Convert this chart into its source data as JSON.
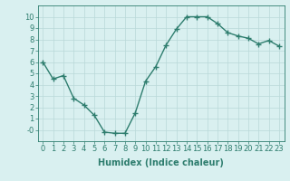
{
  "x": [
    0,
    1,
    2,
    3,
    4,
    5,
    6,
    7,
    8,
    9,
    10,
    11,
    12,
    13,
    14,
    15,
    16,
    17,
    18,
    19,
    20,
    21,
    22,
    23
  ],
  "y": [
    6.0,
    4.5,
    4.8,
    2.8,
    2.2,
    1.3,
    -0.2,
    -0.3,
    -0.3,
    1.5,
    4.3,
    5.6,
    7.5,
    8.9,
    10.0,
    10.0,
    10.0,
    9.4,
    8.6,
    8.3,
    8.1,
    7.6,
    7.9,
    7.4
  ],
  "line_color": "#2e7d6e",
  "marker": "+",
  "marker_size": 4,
  "bg_color": "#d9f0f0",
  "grid_color": "#b8d8d8",
  "xlabel": "Humidex (Indice chaleur)",
  "ylim": [
    -1,
    11
  ],
  "xlim": [
    -0.5,
    23.5
  ],
  "yticks": [
    0,
    1,
    2,
    3,
    4,
    5,
    6,
    7,
    8,
    9,
    10
  ],
  "ytick_labels": [
    "-0",
    "1",
    "2",
    "3",
    "4",
    "5",
    "6",
    "7",
    "8",
    "9",
    "10"
  ],
  "xticks": [
    0,
    1,
    2,
    3,
    4,
    5,
    6,
    7,
    8,
    9,
    10,
    11,
    12,
    13,
    14,
    15,
    16,
    17,
    18,
    19,
    20,
    21,
    22,
    23
  ],
  "xlabel_fontsize": 7,
  "tick_fontsize": 6,
  "line_width": 1.0
}
